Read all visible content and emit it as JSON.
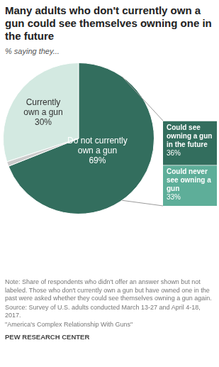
{
  "chart_data": [
    {
      "type": "pie",
      "title": "Many adults who don't currently own a gun could see themselves owning one in the future",
      "subtitle": "% saying they...",
      "categories": [
        "Currently own a gun",
        "Do not currently own a gun",
        null
      ],
      "values": [
        30,
        69,
        1
      ],
      "value_labels": [
        "30%",
        "69%",
        null
      ],
      "colors": [
        "#d3e9e1",
        "#336e5e",
        "#cccccc"
      ],
      "data_labels": true,
      "annotations": [
        "Note: Share of respondents who didn't offer an answer shown but not labeled. Those who don't currently own a gun but have owned one in the past were asked whether they could see themselves owning a gun again.",
        "Source: Survey of U.S. adults conducted March 13-27 and April 4-18, 2017.",
        "\"America's Complex Relationship With Guns\"",
        "PEW RESEARCH CENTER"
      ]
    },
    {
      "type": "bar",
      "stacked": true,
      "categories": [
        null
      ],
      "series": [
        {
          "name": "Could see owning a gun in the future",
          "color": "#336e5e",
          "values": [
            36
          ],
          "value_labels": [
            "36%"
          ]
        },
        {
          "name": "Could never see owning a gun",
          "color": "#5eae99",
          "values": [
            33
          ],
          "value_labels": [
            "33%"
          ]
        }
      ],
      "ylim": [
        0,
        69
      ],
      "data_labels": true,
      "tick_labels": false,
      "grid": false
    }
  ]
}
